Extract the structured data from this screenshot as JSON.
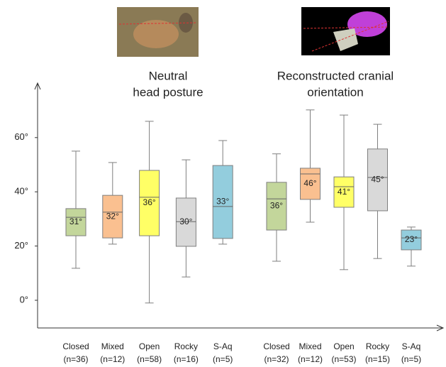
{
  "chart_data": {
    "type": "box",
    "ylim": [
      -10,
      80
    ],
    "yticks": [
      {
        "value": 0,
        "label": "0°"
      },
      {
        "value": 20,
        "label": "20°"
      },
      {
        "value": 40,
        "label": "40°"
      },
      {
        "value": 60,
        "label": "60°"
      }
    ],
    "groups": [
      {
        "title_lines": [
          "Neutral",
          "head posture"
        ],
        "boxes": [
          {
            "category": "Closed",
            "n_label": "(n=36)",
            "color": "#c3d69b",
            "min": 11.8,
            "q1": 23.8,
            "median": 30.6,
            "q3": 33.8,
            "max": 55,
            "mean": 31,
            "value_label": "31°"
          },
          {
            "category": "Mixed",
            "n_label": "(n=12)",
            "color": "#fac090",
            "min": 20.7,
            "q1": 23,
            "median": 32.5,
            "q3": 38.7,
            "max": 50.8,
            "mean": 32,
            "value_label": "32°"
          },
          {
            "category": "Open",
            "n_label": "(n=58)",
            "color": "#ffff66",
            "min": -1,
            "q1": 23.8,
            "median": 38,
            "q3": 47.9,
            "max": 66,
            "mean": 36,
            "value_label": "36°"
          },
          {
            "category": "Rocky",
            "n_label": "(n=16)",
            "color": "#d9d9d9",
            "min": 8.6,
            "q1": 19.9,
            "median": 29,
            "q3": 37.7,
            "max": 51.8,
            "mean": 30,
            "value_label": "30°"
          },
          {
            "category": "S-Aq",
            "n_label": "(n=5)",
            "color": "#93cddd",
            "min": 20.7,
            "q1": 22.8,
            "median": 34.6,
            "q3": 49.7,
            "max": 58.9,
            "mean": 33,
            "value_label": "33°"
          }
        ]
      },
      {
        "title_lines": [
          "Reconstructed cranial",
          "orientation"
        ],
        "boxes": [
          {
            "category": "Closed",
            "n_label": "(n=32)",
            "color": "#c3d69b",
            "min": 14.4,
            "q1": 25.9,
            "median": 37.4,
            "q3": 43.5,
            "max": 54,
            "mean": 36,
            "value_label": "36°"
          },
          {
            "category": "Mixed",
            "n_label": "(n=12)",
            "color": "#fac090",
            "min": 28.8,
            "q1": 37.2,
            "median": 46.6,
            "q3": 48.7,
            "max": 70.2,
            "mean": 46,
            "value_label": "46°"
          },
          {
            "category": "Open",
            "n_label": "(n=53)",
            "color": "#ffff66",
            "min": 11.3,
            "q1": 34.3,
            "median": 41.9,
            "q3": 45.5,
            "max": 68.3,
            "mean": 41,
            "value_label": "41°"
          },
          {
            "category": "Rocky",
            "n_label": "(n=15)",
            "color": "#d9d9d9",
            "min": 15.4,
            "q1": 33,
            "median": 45.3,
            "q3": 55.8,
            "max": 64.9,
            "mean": 45,
            "value_label": "45°"
          },
          {
            "category": "S-Aq",
            "n_label": "(n=5)",
            "color": "#93cddd",
            "min": 12.6,
            "q1": 18.6,
            "median": 23,
            "q3": 25.9,
            "max": 27,
            "mean": 23,
            "value_label": "23°"
          }
        ]
      }
    ]
  }
}
